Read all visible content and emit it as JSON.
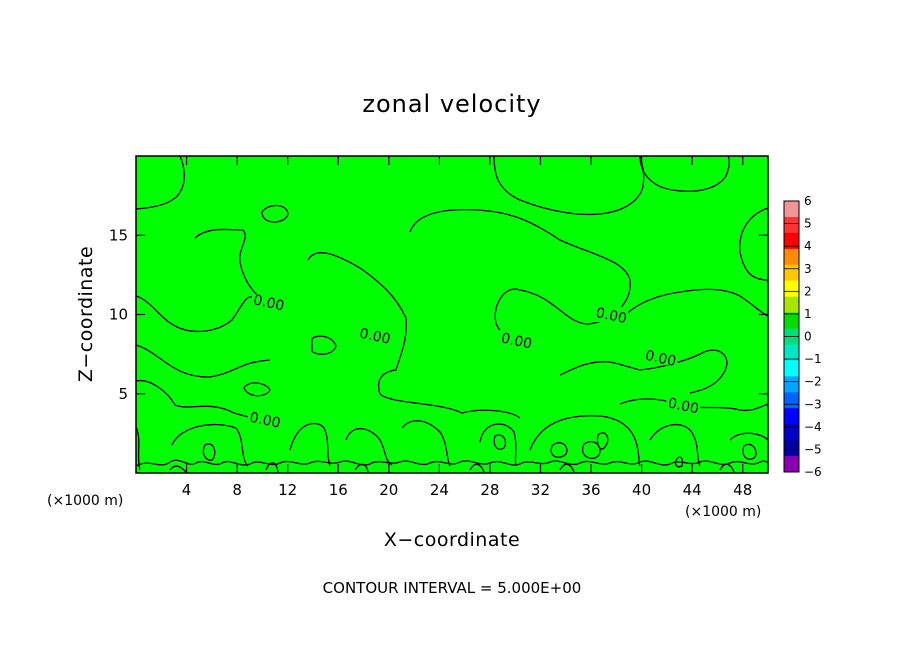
{
  "chart_data": {
    "type": "heatmap",
    "title": "zonal velocity",
    "xlabel": "X−coordinate",
    "ylabel": "Z−coordinate",
    "x_unit_left": "(×1000 m)",
    "x_unit_right": "(×1000 m)",
    "xlim": [
      0,
      50
    ],
    "ylim": [
      0,
      20
    ],
    "x_ticks": [
      4,
      8,
      12,
      16,
      20,
      24,
      28,
      32,
      36,
      40,
      44,
      48
    ],
    "y_ticks": [
      5,
      10,
      15
    ],
    "field_value": 0.0,
    "field_color": "#00ff00",
    "contour_interval_text": "CONTOUR INTERVAL = 5.000E+00",
    "contour_labels": [
      {
        "text": "0.00",
        "x": 10.5,
        "y": 10.7
      },
      {
        "text": "0.00",
        "x": 18.9,
        "y": 8.6
      },
      {
        "text": "0.00",
        "x": 30.1,
        "y": 8.3
      },
      {
        "text": "0.00",
        "x": 37.6,
        "y": 9.9
      },
      {
        "text": "0.00",
        "x": 41.5,
        "y": 7.2
      },
      {
        "text": "0.00",
        "x": 43.3,
        "y": 4.2
      },
      {
        "text": "0.00",
        "x": 10.2,
        "y": 3.3
      }
    ],
    "colorbar": {
      "levels": [
        "6",
        "5",
        "4",
        "3",
        "2",
        "1",
        "0",
        "−1",
        "−2",
        "−3",
        "−4",
        "−5",
        "−6"
      ],
      "colors": [
        "#f19595",
        "#ff3333",
        "#ff0000",
        "#ff8c00",
        "#ffc800",
        "#ffff00",
        "#a6e600",
        "#00dd00",
        "#00e07a",
        "#00e6c8",
        "#00ffff",
        "#00a6ff",
        "#0064ff",
        "#0000ff",
        "#0000cd",
        "#00009f",
        "#8a00b0"
      ]
    }
  }
}
